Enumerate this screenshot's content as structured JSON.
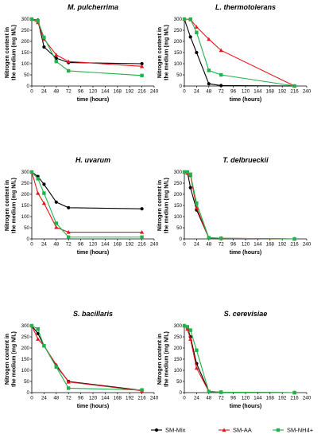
{
  "colors": {
    "SM-Mix": "#000000",
    "SM-AA": "#e8141c",
    "SM-NH4+": "#22b14c"
  },
  "legend": [
    {
      "name": "SM-Mix",
      "marker": "circle"
    },
    {
      "name": "SM-AA",
      "marker": "triangle"
    },
    {
      "name": "SM-NH4+",
      "marker": "square"
    }
  ],
  "chart_data": [
    {
      "type": "line",
      "title": "M. pulcherrima",
      "xlabel": "time (hours)",
      "ylabel": [
        "Nitrogen content in",
        "the medium (mg N/L)"
      ],
      "xlim": [
        0,
        240
      ],
      "ylim": [
        0,
        300
      ],
      "xticks": [
        0,
        24,
        48,
        72,
        96,
        120,
        144,
        168,
        192,
        216,
        240
      ],
      "yticks": [
        0,
        50,
        100,
        150,
        200,
        250,
        300
      ],
      "series": [
        {
          "name": "SM-Mix",
          "x": [
            0,
            12,
            24,
            48,
            72,
            216
          ],
          "y": [
            300,
            295,
            175,
            125,
            105,
            100
          ]
        },
        {
          "name": "SM-AA",
          "x": [
            0,
            12,
            24,
            48,
            72,
            216
          ],
          "y": [
            300,
            285,
            210,
            140,
            110,
            88
          ]
        },
        {
          "name": "SM-NH4+",
          "x": [
            0,
            12,
            24,
            48,
            72,
            216
          ],
          "y": [
            300,
            292,
            218,
            110,
            68,
            47
          ]
        }
      ]
    },
    {
      "type": "line",
      "title": "L. thermotolerans",
      "xlabel": "time (hours)",
      "ylabel": [
        "Nitrogen content in",
        "the medium (mg N/L)"
      ],
      "xlim": [
        0,
        240
      ],
      "ylim": [
        0,
        300
      ],
      "xticks": [
        0,
        24,
        48,
        72,
        96,
        120,
        144,
        168,
        192,
        216,
        240
      ],
      "yticks": [
        0,
        50,
        100,
        150,
        200,
        250,
        300
      ],
      "series": [
        {
          "name": "SM-Mix",
          "x": [
            0,
            12,
            24,
            48,
            72,
            216
          ],
          "y": [
            300,
            220,
            150,
            10,
            2,
            0
          ]
        },
        {
          "name": "SM-AA",
          "x": [
            0,
            12,
            24,
            48,
            72,
            216
          ],
          "y": [
            300,
            298,
            265,
            210,
            160,
            0
          ]
        },
        {
          "name": "SM-NH4+",
          "x": [
            0,
            12,
            24,
            48,
            72,
            216
          ],
          "y": [
            300,
            300,
            240,
            70,
            50,
            0
          ]
        }
      ]
    },
    {
      "type": "line",
      "title": "H. uvarum",
      "xlabel": "time (hours)",
      "ylabel": [
        "Nitrogen content in",
        "the medium (mg N/L)"
      ],
      "xlim": [
        0,
        240
      ],
      "ylim": [
        0,
        300
      ],
      "xticks": [
        0,
        24,
        48,
        72,
        96,
        120,
        144,
        168,
        192,
        216,
        240
      ],
      "yticks": [
        0,
        50,
        100,
        150,
        200,
        250,
        300
      ],
      "series": [
        {
          "name": "SM-Mix",
          "x": [
            0,
            12,
            24,
            48,
            72,
            216
          ],
          "y": [
            300,
            280,
            245,
            165,
            140,
            135
          ]
        },
        {
          "name": "SM-AA",
          "x": [
            0,
            12,
            24,
            48,
            72,
            216
          ],
          "y": [
            300,
            205,
            160,
            52,
            30,
            30
          ]
        },
        {
          "name": "SM-NH4+",
          "x": [
            0,
            12,
            24,
            48,
            72,
            216
          ],
          "y": [
            300,
            270,
            205,
            70,
            8,
            8
          ]
        }
      ]
    },
    {
      "type": "line",
      "title": "T. delbrueckii",
      "xlabel": "time (hours)",
      "ylabel": [
        "Nitrogen content in",
        "the medium (mg N/L)"
      ],
      "xlim": [
        0,
        240
      ],
      "ylim": [
        0,
        300
      ],
      "xticks": [
        0,
        24,
        48,
        72,
        96,
        120,
        144,
        168,
        192,
        216,
        240
      ],
      "yticks": [
        0,
        50,
        100,
        150,
        200,
        250,
        300
      ],
      "series": [
        {
          "name": "SM-Mix",
          "x": [
            0,
            6,
            12,
            24,
            48,
            72,
            216
          ],
          "y": [
            300,
            300,
            230,
            130,
            5,
            2,
            0
          ]
        },
        {
          "name": "SM-AA",
          "x": [
            0,
            6,
            12,
            24,
            48,
            72,
            216
          ],
          "y": [
            300,
            295,
            285,
            140,
            5,
            3,
            0
          ]
        },
        {
          "name": "SM-NH4+",
          "x": [
            0,
            6,
            12,
            24,
            48,
            72,
            216
          ],
          "y": [
            300,
            300,
            290,
            160,
            5,
            3,
            0
          ]
        }
      ]
    },
    {
      "type": "line",
      "title": "S. bacillaris",
      "xlabel": "time (hours)",
      "ylabel": [
        "Nitrogen content in",
        "the medium (mg N/L)"
      ],
      "xlim": [
        0,
        240
      ],
      "ylim": [
        0,
        300
      ],
      "xticks": [
        0,
        24,
        48,
        72,
        96,
        120,
        144,
        168,
        192,
        216,
        240
      ],
      "yticks": [
        0,
        50,
        100,
        150,
        200,
        250,
        300
      ],
      "series": [
        {
          "name": "SM-Mix",
          "x": [
            0,
            12,
            24,
            48,
            72,
            216
          ],
          "y": [
            300,
            265,
            210,
            120,
            50,
            10
          ]
        },
        {
          "name": "SM-AA",
          "x": [
            0,
            12,
            24,
            48,
            72,
            216
          ],
          "y": [
            300,
            240,
            210,
            125,
            48,
            8
          ]
        },
        {
          "name": "SM-NH4+",
          "x": [
            0,
            12,
            24,
            48,
            72,
            216
          ],
          "y": [
            300,
            285,
            210,
            115,
            20,
            12
          ]
        }
      ]
    },
    {
      "type": "line",
      "title": "S. cerevisiae",
      "xlabel": "time (hours)",
      "ylabel": [
        "Nitrogen content in",
        "the medium (mg N/L)"
      ],
      "xlim": [
        0,
        240
      ],
      "ylim": [
        0,
        300
      ],
      "xticks": [
        0,
        24,
        48,
        72,
        96,
        120,
        144,
        168,
        192,
        216,
        240
      ],
      "yticks": [
        0,
        50,
        100,
        150,
        200,
        250,
        300
      ],
      "series": [
        {
          "name": "SM-Mix",
          "x": [
            0,
            6,
            12,
            24,
            48,
            72,
            216
          ],
          "y": [
            300,
            290,
            250,
            130,
            5,
            2,
            0
          ]
        },
        {
          "name": "SM-AA",
          "x": [
            0,
            6,
            12,
            24,
            48,
            72,
            216
          ],
          "y": [
            300,
            285,
            240,
            110,
            5,
            2,
            0
          ]
        },
        {
          "name": "SM-NH4+",
          "x": [
            0,
            6,
            12,
            24,
            48,
            72,
            216
          ],
          "y": [
            300,
            295,
            280,
            190,
            5,
            2,
            0
          ]
        }
      ]
    }
  ]
}
